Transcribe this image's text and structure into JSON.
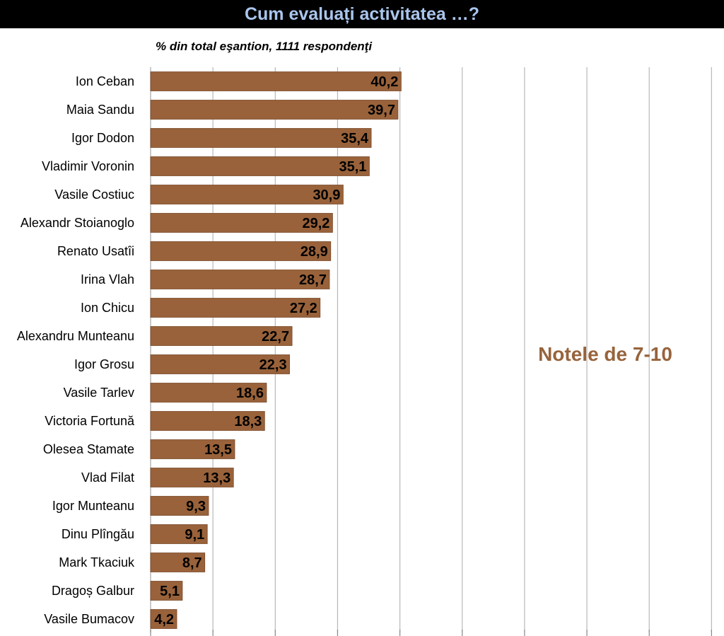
{
  "header": {
    "title": "Cum evaluați activitatea …?",
    "subtitle": "% din total eşantion, 1111 respondenţi"
  },
  "annotation": "Notele de 7-10",
  "colors": {
    "bar": "#99623a",
    "bar_stroke": "#7a4a2a",
    "grid": "#b8b8b8",
    "annotation": "#97643c",
    "title_bg": "#000000",
    "title_text": "#a9c5ec"
  },
  "chart_data": {
    "type": "bar",
    "orientation": "horizontal",
    "categories": [
      "Ion Ceban",
      "Maia Sandu",
      "Igor Dodon",
      "Vladimir Voronin",
      "Vasile Costiuc",
      "Alexandr Stoianoglo",
      "Renato Usatîi",
      "Irina Vlah",
      "Ion Chicu",
      "Alexandru Munteanu",
      "Igor Grosu",
      "Vasile Tarlev",
      "Victoria Fortună",
      "Olesea Stamate",
      "Vlad Filat",
      "Igor Munteanu",
      "Dinu Plîngău",
      "Mark Tkaciuk",
      "Dragoș Galbur",
      "Vasile Bumacov"
    ],
    "values": [
      40.2,
      39.7,
      35.4,
      35.1,
      30.9,
      29.2,
      28.9,
      28.7,
      27.2,
      22.7,
      22.3,
      18.6,
      18.3,
      13.5,
      13.3,
      9.3,
      9.1,
      8.7,
      5.1,
      4.2
    ],
    "value_labels": [
      "40,2",
      "39,7",
      "35,4",
      "35,1",
      "30,9",
      "29,2",
      "28,9",
      "28,7",
      "27,2",
      "22,7",
      "22,3",
      "18,6",
      "18,3",
      "13,5",
      "13,3",
      "9,3",
      "9,1",
      "8,7",
      "5,1",
      "4,2"
    ],
    "xlim": [
      0,
      92
    ],
    "x_gridlines": [
      0,
      10,
      20,
      30,
      40,
      50,
      60,
      70,
      80,
      90
    ],
    "grid": true,
    "legend": "none"
  }
}
